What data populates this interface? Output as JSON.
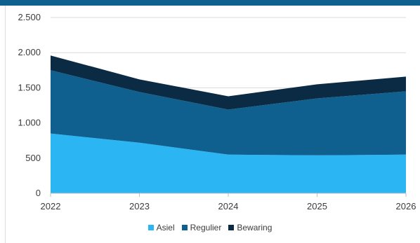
{
  "chart_data": {
    "type": "area",
    "stacked": true,
    "title": "",
    "xlabel": "",
    "ylabel": "",
    "x": [
      "2022",
      "2023",
      "2024",
      "2025",
      "2026"
    ],
    "ylim": [
      0,
      2500
    ],
    "yticks": [
      0,
      500,
      1000,
      1500,
      2000,
      2500
    ],
    "ytick_labels": [
      "0",
      "500",
      "1.000",
      "1.500",
      "2.000",
      "2.500"
    ],
    "grid": true,
    "legend_position": "bottom",
    "series": [
      {
        "name": "Asiel",
        "color": "#2bb5f2",
        "values": [
          850,
          720,
          550,
          540,
          550
        ]
      },
      {
        "name": "Regulier",
        "color": "#0f5f8f",
        "values": [
          900,
          720,
          640,
          810,
          900
        ]
      },
      {
        "name": "Bewaring",
        "color": "#0b2b45",
        "values": [
          210,
          180,
          190,
          200,
          210
        ]
      }
    ]
  }
}
